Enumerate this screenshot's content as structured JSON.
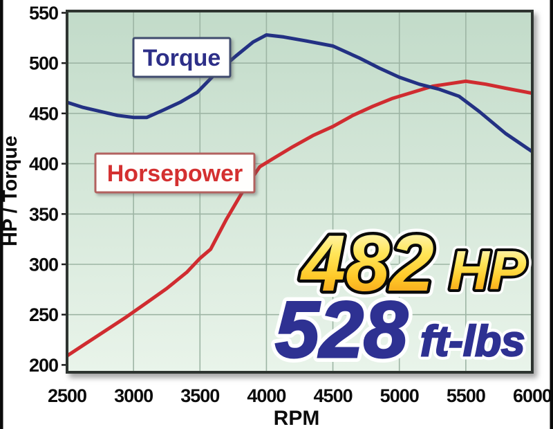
{
  "page": {
    "background_color": "#ffffff",
    "frame_bar_color": "#0b0b0b"
  },
  "chart_data": {
    "type": "line",
    "title": "",
    "xlabel": "RPM",
    "ylabel": "HP / Torque",
    "x_range": [
      2500,
      6000
    ],
    "y_range": [
      200,
      550
    ],
    "x_ticks": [
      2500,
      3000,
      3500,
      4000,
      4500,
      5000,
      5500,
      6000
    ],
    "y_ticks": [
      200,
      250,
      300,
      350,
      400,
      450,
      500,
      550
    ],
    "grid": true,
    "grid_color": "#9db5a4",
    "plot_bg_gradient_top": "#c2dbc9",
    "plot_bg_gradient_bottom": "#e9f4ea",
    "plot_border_color": "#2e3430",
    "legend_position": "inline-boxes",
    "series": [
      {
        "name": "Horsepower",
        "unit": "HP",
        "color": "#d02c30",
        "points": [
          [
            2500,
            209
          ],
          [
            2650,
            222
          ],
          [
            2800,
            235
          ],
          [
            2950,
            248
          ],
          [
            3100,
            262
          ],
          [
            3250,
            276
          ],
          [
            3400,
            292
          ],
          [
            3500,
            306
          ],
          [
            3580,
            315
          ],
          [
            3700,
            345
          ],
          [
            3820,
            372
          ],
          [
            3950,
            397
          ],
          [
            4050,
            405
          ],
          [
            4200,
            417
          ],
          [
            4350,
            428
          ],
          [
            4500,
            437
          ],
          [
            4650,
            448
          ],
          [
            4800,
            457
          ],
          [
            4950,
            465
          ],
          [
            5100,
            471
          ],
          [
            5250,
            477
          ],
          [
            5400,
            480
          ],
          [
            5500,
            482
          ],
          [
            5650,
            479
          ],
          [
            5800,
            475
          ],
          [
            6000,
            470
          ]
        ]
      },
      {
        "name": "Torque",
        "unit": "ft-lbs",
        "color": "#233183",
        "points": [
          [
            2500,
            461
          ],
          [
            2620,
            456
          ],
          [
            2750,
            452
          ],
          [
            2880,
            448
          ],
          [
            3000,
            446
          ],
          [
            3100,
            446
          ],
          [
            3220,
            453
          ],
          [
            3350,
            461
          ],
          [
            3480,
            471
          ],
          [
            3620,
            490
          ],
          [
            3770,
            507
          ],
          [
            3900,
            521
          ],
          [
            4000,
            528
          ],
          [
            4130,
            526
          ],
          [
            4300,
            522
          ],
          [
            4500,
            517
          ],
          [
            4700,
            505
          ],
          [
            4850,
            495
          ],
          [
            5000,
            486
          ],
          [
            5150,
            479
          ],
          [
            5300,
            474
          ],
          [
            5450,
            467
          ],
          [
            5600,
            452
          ],
          [
            5800,
            430
          ],
          [
            6000,
            412
          ]
        ]
      }
    ],
    "series_labels": [
      {
        "text": "Torque",
        "text_color": "#2d2f88",
        "border_color": "#3f4b6e",
        "box_fill": "#ffffff"
      },
      {
        "text": "Horsepower",
        "text_color": "#d43030",
        "border_color": "#b2615f",
        "box_fill": "#fffefd"
      }
    ],
    "annotations": {
      "peak_hp_value": "482",
      "peak_hp_unit": "HP",
      "peak_hp_gradient": [
        "#fefce3",
        "#ffe65a",
        "#ffc929",
        "#f08f12"
      ],
      "peak_torque_value": "528",
      "peak_torque_unit": "ft-lbs",
      "peak_torque_color": "#2e3192",
      "outline_color": "#0a0a0a",
      "halo_color": "#ffffff"
    }
  }
}
